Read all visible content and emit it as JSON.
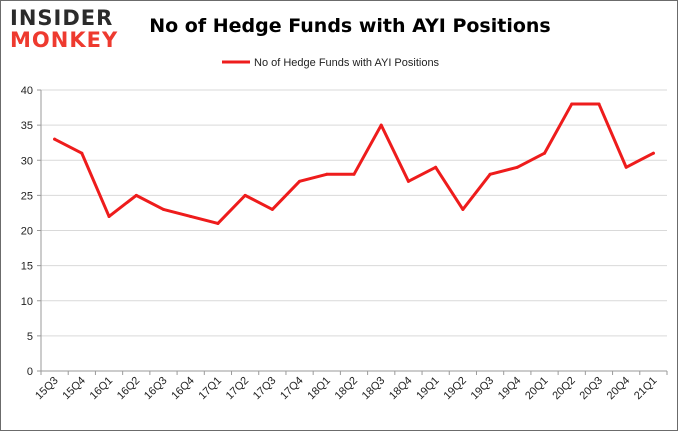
{
  "brand": {
    "logo_line1": "INSIDER",
    "logo_line2": "MONKEY",
    "text_color": "#2b2b2b",
    "accent_color": "#ee3a2f"
  },
  "chart_data": {
    "type": "line",
    "title": "No of Hedge Funds with AYI Positions",
    "xlabel": "",
    "ylabel": "",
    "categories": [
      "15Q3",
      "15Q4",
      "16Q1",
      "16Q2",
      "16Q3",
      "16Q4",
      "17Q1",
      "17Q2",
      "17Q3",
      "17Q4",
      "18Q1",
      "18Q2",
      "18Q3",
      "18Q4",
      "19Q1",
      "19Q2",
      "19Q3",
      "19Q4",
      "20Q1",
      "20Q2",
      "20Q3",
      "20Q4",
      "21Q1"
    ],
    "series": [
      {
        "name": "No of Hedge Funds with AYI Positions",
        "color": "#ee1c1c",
        "values": [
          33,
          31,
          22,
          25,
          23,
          22,
          21,
          25,
          23,
          27,
          28,
          28,
          35,
          27,
          29,
          23,
          28,
          29,
          31,
          38,
          38,
          29,
          31
        ]
      }
    ],
    "ylim": [
      0,
      40
    ],
    "yticks": [
      0,
      5,
      10,
      15,
      20,
      25,
      30,
      35,
      40
    ],
    "grid": true,
    "legend_position": "top-center"
  }
}
